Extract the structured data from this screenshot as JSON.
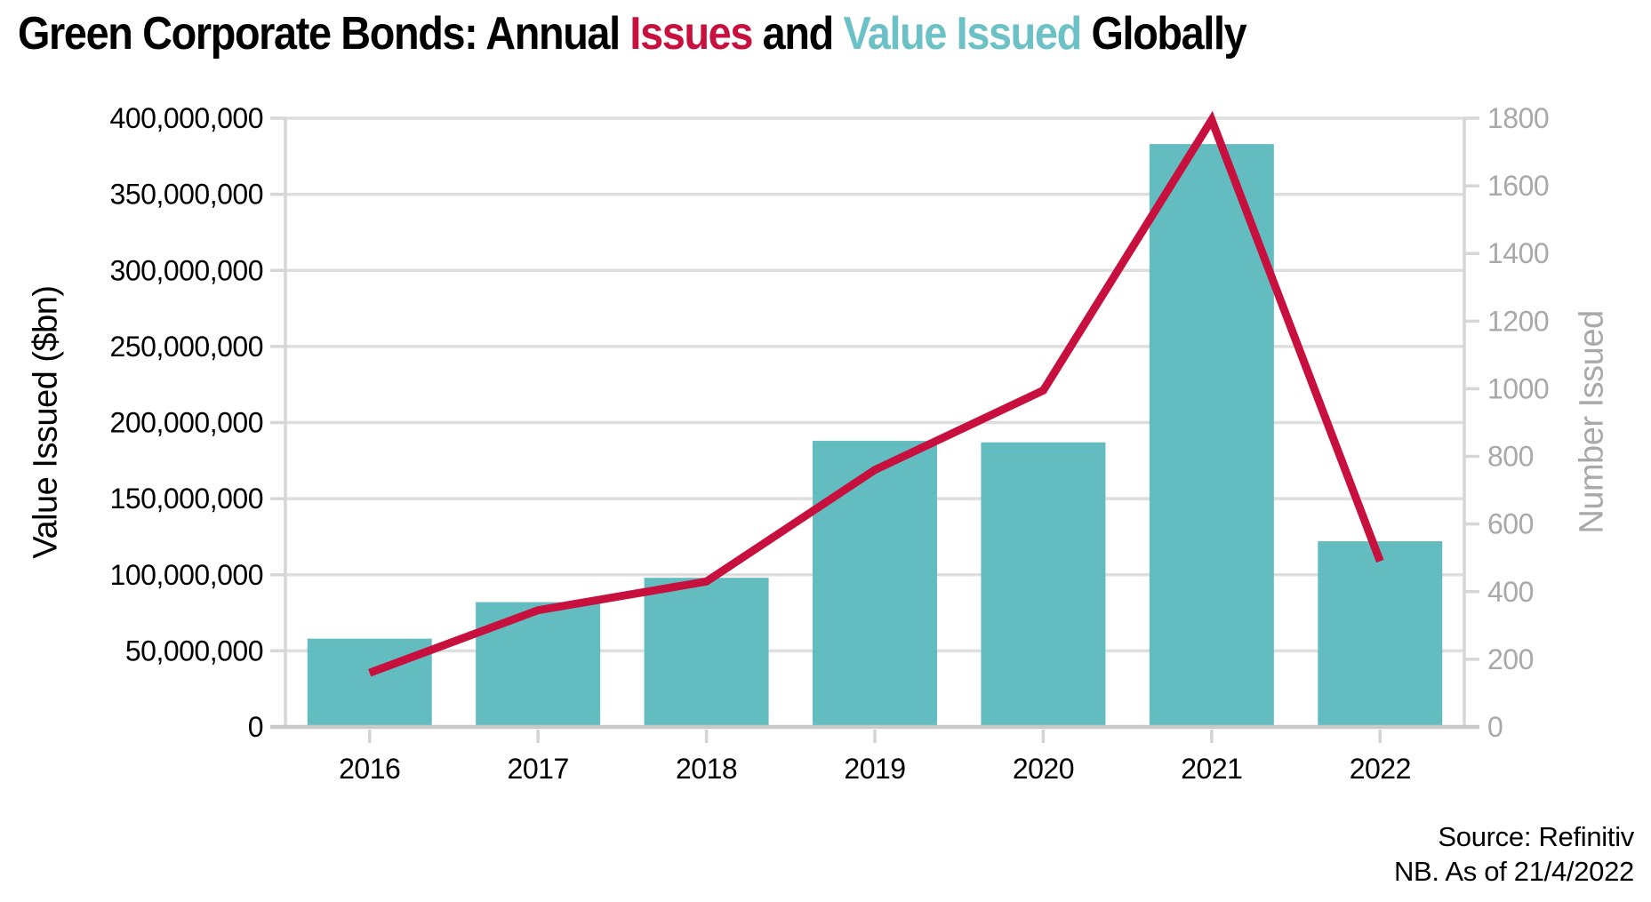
{
  "title": {
    "segments": [
      {
        "text": "Green Corporate Bonds: Annual ",
        "color": "#000000"
      },
      {
        "text": "Issues",
        "color": "#C8103F"
      },
      {
        "text": " and ",
        "color": "#000000"
      },
      {
        "text": "Value Issued",
        "color": "#6BC1C5"
      },
      {
        "text": " Globally",
        "color": "#000000"
      }
    ]
  },
  "chart_data": {
    "type": "bar+line combo",
    "title": "Green Corporate Bonds: Annual Issues and Value Issued Globally",
    "categories": [
      "2016",
      "2017",
      "2018",
      "2019",
      "2020",
      "2021",
      "2022"
    ],
    "series": [
      {
        "name": "Value Issued",
        "chart": "bar",
        "axis": "left",
        "color": "#63BDC0",
        "values": [
          58000000,
          82000000,
          98000000,
          188000000,
          187000000,
          383000000,
          122000000
        ]
      },
      {
        "name": "Number Issued",
        "chart": "line",
        "axis": "right",
        "color": "#C8103F",
        "values": [
          160,
          345,
          430,
          760,
          995,
          1795,
          490
        ]
      }
    ],
    "left_axis": {
      "label": "Value Issued ($bn)",
      "min": 0,
      "max": 400000000,
      "tick_step": 50000000,
      "tick_labels": [
        "0",
        "50,000,000",
        "100,000,000",
        "150,000,000",
        "200,000,000",
        "250,000,000",
        "300,000,000",
        "350,000,000",
        "400,000,000"
      ]
    },
    "right_axis": {
      "label": "Number Issued",
      "min": 0,
      "max": 1800,
      "tick_step": 200,
      "tick_labels": [
        "0",
        "200",
        "400",
        "600",
        "800",
        "1000",
        "1200",
        "1400",
        "1600",
        "1800"
      ]
    },
    "x_axis": {
      "tick_labels": [
        "2016",
        "2017",
        "2018",
        "2019",
        "2020",
        "2021",
        "2022"
      ]
    },
    "grid": "horizontal",
    "legend": "none"
  },
  "footer": {
    "source": "Source: Refinitiv",
    "note": "NB. As of 21/4/2022"
  },
  "colors": {
    "bar": "#63BDC0",
    "line": "#C8103F",
    "grid": "#DEDEDE",
    "axis_line": "#D6D6D6",
    "baseline": "#C9C9C9",
    "bottom_tick": "#D3D3D3",
    "left_text": "#000000",
    "right_text": "#A9A9A9",
    "background": "#FFFFFF"
  }
}
